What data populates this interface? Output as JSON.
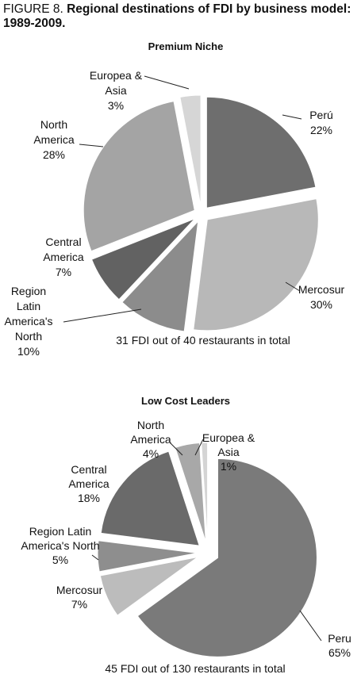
{
  "figure": {
    "lead": "FIGURE 8.",
    "title": " Regional destinations of FDI by business model: 1989-2009."
  },
  "chart_data": [
    {
      "type": "pie",
      "title": "Premium Niche",
      "note": "31 FDI out of 40 restaurants in total",
      "exploded": true,
      "slices": [
        {
          "label": [
            "Perú",
            "22%"
          ],
          "value": 22,
          "color": "#6e6e6e"
        },
        {
          "label": [
            "Mercosur",
            "30%"
          ],
          "value": 30,
          "color": "#b8b8b8"
        },
        {
          "label": [
            "Region",
            "Latin",
            "America's",
            "North",
            "10%"
          ],
          "value": 10,
          "color": "#8c8c8c"
        },
        {
          "label": [
            "Central",
            "America",
            "7%"
          ],
          "value": 7,
          "color": "#626262"
        },
        {
          "label": [
            "North",
            "America",
            "28%"
          ],
          "value": 28,
          "color": "#a4a4a4"
        },
        {
          "label": [
            "Europea &",
            "Asia",
            "3%"
          ],
          "value": 3,
          "color": "#d6d6d6"
        }
      ]
    },
    {
      "type": "pie",
      "title": "Low Cost Leaders",
      "note": "45 FDI out of 130 restaurants in total",
      "exploded": true,
      "slices": [
        {
          "label": [
            "Peru",
            "65%"
          ],
          "value": 65,
          "color": "#7a7a7a"
        },
        {
          "label": [
            "Mercosur",
            "7%"
          ],
          "value": 7,
          "color": "#bcbcbc"
        },
        {
          "label": [
            "Region Latin",
            "America's North",
            "5%"
          ],
          "value": 5,
          "color": "#8e8e8e"
        },
        {
          "label": [
            "Central",
            "America",
            "18%"
          ],
          "value": 18,
          "color": "#6a6a6a"
        },
        {
          "label": [
            "North",
            "America",
            "4%"
          ],
          "value": 4,
          "color": "#a8a8a8"
        },
        {
          "label": [
            "Europea &",
            "Asia",
            "1%"
          ],
          "value": 1,
          "color": "#d4d4d4"
        }
      ]
    }
  ]
}
